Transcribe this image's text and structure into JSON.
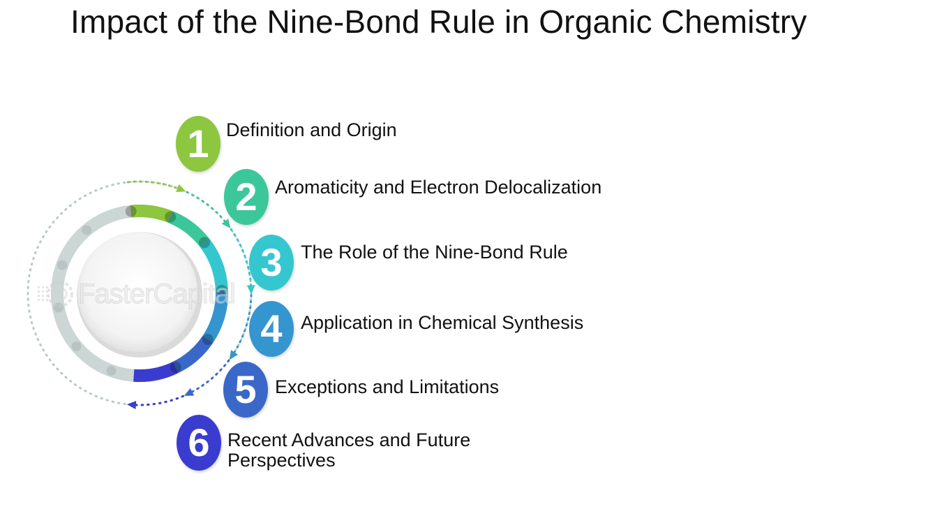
{
  "title": "Impact of the Nine-Bond Rule in Organic Chemistry",
  "steps": [
    {
      "number": "1",
      "label": "Definition and Origin",
      "color": "#8dc63f"
    },
    {
      "number": "2",
      "label": "Aromaticity and Electron Delocalization",
      "color": "#3cc79a"
    },
    {
      "number": "3",
      "label": "The Role of the Nine-Bond Rule",
      "color": "#35c7cf"
    },
    {
      "number": "4",
      "label": "Application in Chemical Synthesis",
      "color": "#3495cf"
    },
    {
      "number": "5",
      "label": "Exceptions and Limitations",
      "color": "#3a68c9"
    },
    {
      "number": "6",
      "label": "Recent Advances and Future Perspectives",
      "color": "#3a3cd0"
    }
  ],
  "watermark": {
    "text": "FasterCapital",
    "icon": "gear-logo-icon"
  }
}
